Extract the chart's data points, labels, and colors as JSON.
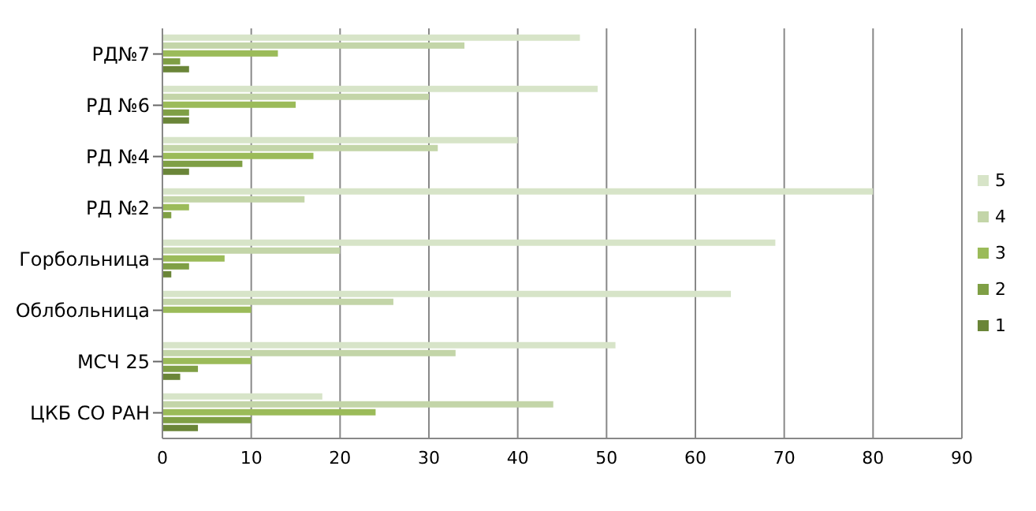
{
  "chart_data": {
    "type": "bar",
    "orientation": "horizontal",
    "categories": [
      "РД№7",
      "РД №6",
      "РД №4",
      "РД №2",
      "Горбольница",
      "Облбольница",
      "МСЧ 25",
      "ЦКБ СО РАН"
    ],
    "series": [
      {
        "name": "5",
        "color": "#d7e4c8",
        "values": [
          47,
          49,
          40,
          80,
          69,
          64,
          51,
          18
        ]
      },
      {
        "name": "4",
        "color": "#c3d5a8",
        "values": [
          34,
          30,
          31,
          16,
          20,
          26,
          33,
          44
        ]
      },
      {
        "name": "3",
        "color": "#9bbb59",
        "values": [
          13,
          15,
          17,
          3,
          7,
          10,
          10,
          24
        ]
      },
      {
        "name": "2",
        "color": "#7f9f45",
        "values": [
          2,
          3,
          9,
          1,
          3,
          0,
          4,
          10
        ]
      },
      {
        "name": "1",
        "color": "#6a8538",
        "values": [
          3,
          3,
          3,
          0,
          1,
          0,
          2,
          4
        ]
      }
    ],
    "xlim": [
      0,
      90
    ],
    "xticks": [
      0,
      10,
      20,
      30,
      40,
      50,
      60,
      70,
      80,
      90
    ],
    "grid": "x",
    "legend": "right"
  }
}
